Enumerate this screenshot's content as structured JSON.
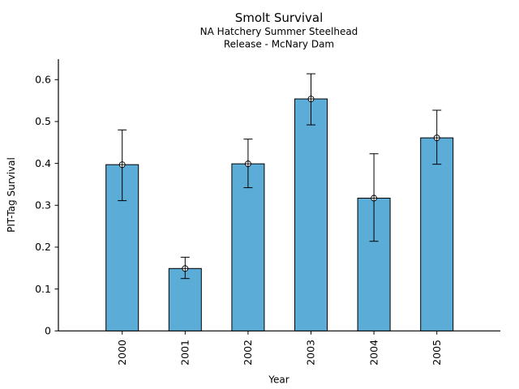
{
  "chart_data": {
    "type": "bar",
    "title": "Smolt Survival",
    "subtitle_line1": "NA Hatchery Summer Steelhead",
    "subtitle_line2": "Release - McNary Dam",
    "xlabel": "Year",
    "ylabel": "PIT-Tag Survival",
    "categories": [
      "2000",
      "2001",
      "2002",
      "2003",
      "2004",
      "2005"
    ],
    "values": [
      0.397,
      0.149,
      0.399,
      0.554,
      0.317,
      0.461
    ],
    "error_low": [
      0.311,
      0.125,
      0.342,
      0.492,
      0.214,
      0.398
    ],
    "error_high": [
      0.48,
      0.176,
      0.458,
      0.614,
      0.423,
      0.527
    ],
    "y_ticks": [
      0,
      0.1,
      0.2,
      0.3,
      0.4,
      0.5,
      0.6
    ],
    "y_tick_labels": [
      "0",
      "0.1",
      "0.2",
      "0.3",
      "0.4",
      "0.5",
      "0.6"
    ],
    "ylim": [
      0,
      0.648
    ],
    "grid": false,
    "legend_position": "none",
    "marker": "circle-plus",
    "colors": {
      "bar_fill": "#5BACD7",
      "bar_edge": "#000000",
      "error_bar": "#000000",
      "axis": "#000000",
      "text": "#000000",
      "background": "#FFFFFF"
    }
  }
}
